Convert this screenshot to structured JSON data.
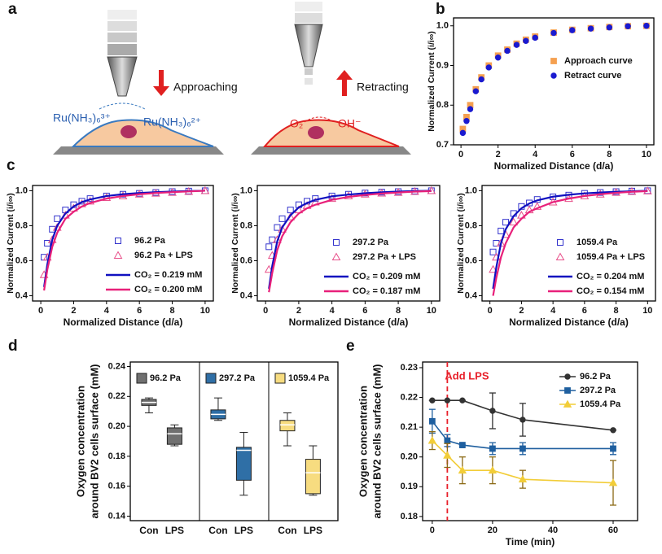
{
  "panel_labels": [
    "a",
    "b",
    "c",
    "d",
    "e"
  ],
  "panel_a": {
    "approach": "Approaching",
    "retract": "Retracting",
    "oxidized": "Ru(NH₃)₆³⁺",
    "reduced": "Ru(NH₃)₆²⁺",
    "oxygen": "O₂",
    "hydroxide": "OH⁻"
  },
  "chart_data": [
    {
      "type": "scatter",
      "xlabel": "Normalized Distance (d/a)",
      "ylabel": "Normalized Current (i/i∞)",
      "xlim": [
        -0.4,
        10.4
      ],
      "ylim": [
        0.7,
        1.02
      ],
      "xticks": [
        0,
        2,
        4,
        6,
        8,
        10
      ],
      "yticks": [
        0.7,
        0.8,
        0.9,
        {
          "value": 1,
          "label": "1.0"
        }
      ],
      "x": [
        0.1,
        0.3,
        0.5,
        0.8,
        1.1,
        1.5,
        2,
        2.5,
        3,
        3.5,
        4,
        5,
        6,
        7,
        8,
        9,
        10
      ],
      "series": [
        {
          "name": "Approach curve",
          "color": "#f5a050",
          "marker": "square",
          "values": [
            0.74,
            0.77,
            0.8,
            0.84,
            0.87,
            0.9,
            0.925,
            0.94,
            0.955,
            0.965,
            0.973,
            0.983,
            0.99,
            0.994,
            0.997,
            0.999,
            1.0
          ]
        },
        {
          "name": "Retract curve",
          "color": "#1a1ad0",
          "marker": "circle",
          "values": [
            0.73,
            0.76,
            0.79,
            0.835,
            0.865,
            0.895,
            0.92,
            0.937,
            0.952,
            0.962,
            0.97,
            0.982,
            0.989,
            0.993,
            0.996,
            0.999,
            1.0
          ]
        }
      ]
    },
    {
      "type": "scatter",
      "xlabel": "Normalized Distance (d/a)",
      "ylabel": "Normalized Current (i/i∞)",
      "xlim": [
        -0.5,
        10.5
      ],
      "ylim": [
        0.37,
        1.03
      ],
      "xticks": [
        0,
        2,
        4,
        6,
        8,
        10
      ],
      "yticks": [
        0.4,
        0.6,
        0.8,
        {
          "value": 1,
          "label": "1.0"
        }
      ],
      "x": [
        0.2,
        0.4,
        0.7,
        1,
        1.5,
        2,
        2.5,
        3,
        4,
        5,
        6,
        7,
        8,
        9,
        10
      ],
      "series": [
        {
          "name": "96.2 Pa",
          "color": "#3333cc",
          "marker": "square",
          "values": [
            0.62,
            0.7,
            0.78,
            0.84,
            0.89,
            0.92,
            0.94,
            0.955,
            0.97,
            0.98,
            0.985,
            0.99,
            0.995,
            0.998,
            1.0
          ]
        },
        {
          "name": "96.2 Pa + LPS",
          "color": "#e8508a",
          "marker": "triangle",
          "values": [
            0.52,
            0.62,
            0.72,
            0.79,
            0.86,
            0.9,
            0.925,
            0.94,
            0.96,
            0.97,
            0.98,
            0.985,
            0.99,
            0.995,
            1.0
          ]
        },
        {
          "name": "CO₂ = 0.219 mM",
          "color": "#1010c0",
          "marker": "line",
          "values": [
            0.45,
            0.58,
            0.72,
            0.8,
            0.87,
            0.91,
            0.935,
            0.95,
            0.97,
            0.98,
            0.987,
            0.992,
            0.995,
            0.998,
            1.0
          ]
        },
        {
          "name": "CO₂ = 0.200 mM",
          "color": "#e8207a",
          "marker": "line",
          "values": [
            0.43,
            0.55,
            0.68,
            0.76,
            0.84,
            0.88,
            0.91,
            0.93,
            0.955,
            0.97,
            0.98,
            0.987,
            0.992,
            0.996,
            1.0
          ]
        }
      ]
    },
    {
      "type": "scatter",
      "xlabel": "Normalized Distance (d/a)",
      "ylabel": "Normalized Current (i/i∞)",
      "xlim": [
        -0.5,
        10.5
      ],
      "ylim": [
        0.37,
        1.03
      ],
      "xticks": [
        0,
        2,
        4,
        6,
        8,
        10
      ],
      "yticks": [
        0.4,
        0.6,
        0.8,
        {
          "value": 1,
          "label": "1.0"
        }
      ],
      "x": [
        0.2,
        0.4,
        0.7,
        1,
        1.5,
        2,
        2.5,
        3,
        4,
        5,
        6,
        7,
        8,
        9,
        10
      ],
      "series": [
        {
          "name": "297.2 Pa",
          "color": "#3333cc",
          "marker": "square",
          "values": [
            0.68,
            0.72,
            0.79,
            0.84,
            0.89,
            0.92,
            0.94,
            0.955,
            0.97,
            0.98,
            0.987,
            0.992,
            0.995,
            0.998,
            1.0
          ]
        },
        {
          "name": "297.2 Pa + LPS",
          "color": "#e8508a",
          "marker": "triangle",
          "values": [
            0.55,
            0.63,
            0.72,
            0.78,
            0.85,
            0.89,
            0.915,
            0.935,
            0.955,
            0.97,
            0.98,
            0.986,
            0.99,
            0.995,
            1.0
          ]
        },
        {
          "name": "CO₂ = 0.209 mM",
          "color": "#1010c0",
          "marker": "line",
          "values": [
            0.44,
            0.57,
            0.71,
            0.79,
            0.86,
            0.905,
            0.93,
            0.948,
            0.968,
            0.978,
            0.986,
            0.991,
            0.995,
            0.998,
            1.0
          ]
        },
        {
          "name": "CO₂ = 0.187 mM",
          "color": "#e8207a",
          "marker": "line",
          "values": [
            0.42,
            0.53,
            0.66,
            0.74,
            0.82,
            0.87,
            0.9,
            0.92,
            0.948,
            0.965,
            0.976,
            0.984,
            0.99,
            0.995,
            0.998
          ]
        }
      ]
    },
    {
      "type": "scatter",
      "xlabel": "Normalized Distance (d/a)",
      "ylabel": "Normalized Current (i/i∞)",
      "xlim": [
        -0.5,
        10.5
      ],
      "ylim": [
        0.37,
        1.03
      ],
      "xticks": [
        0,
        2,
        4,
        6,
        8,
        10
      ],
      "yticks": [
        0.4,
        0.6,
        0.8,
        {
          "value": 1,
          "label": "1.0"
        }
      ],
      "x": [
        0.2,
        0.4,
        0.7,
        1,
        1.5,
        2,
        2.5,
        3,
        4,
        5,
        6,
        7,
        8,
        9,
        10
      ],
      "series": [
        {
          "name": "1059.4 Pa",
          "color": "#3333cc",
          "marker": "square",
          "values": [
            0.65,
            0.7,
            0.77,
            0.82,
            0.87,
            0.91,
            0.93,
            0.95,
            0.965,
            0.975,
            0.985,
            0.99,
            0.995,
            0.998,
            1.0
          ]
        },
        {
          "name": "1059.4 Pa + LPS",
          "color": "#e8508a",
          "marker": "triangle",
          "values": [
            0.55,
            0.62,
            0.7,
            0.75,
            0.82,
            0.86,
            0.89,
            0.91,
            0.935,
            0.955,
            0.97,
            0.98,
            0.99,
            0.995,
            0.998
          ]
        },
        {
          "name": "CO₂ = 0.204 mM",
          "color": "#1010c0",
          "marker": "line",
          "values": [
            0.44,
            0.56,
            0.7,
            0.78,
            0.855,
            0.9,
            0.927,
            0.945,
            0.966,
            0.977,
            0.985,
            0.99,
            0.994,
            0.997,
            1.0
          ]
        },
        {
          "name": "CO₂ = 0.154 mM",
          "color": "#e8207a",
          "marker": "line",
          "values": [
            0.4,
            0.5,
            0.62,
            0.7,
            0.79,
            0.84,
            0.88,
            0.9,
            0.935,
            0.955,
            0.97,
            0.98,
            0.988,
            0.994,
            0.998
          ]
        }
      ]
    },
    {
      "type": "box",
      "ylabel": [
        "Oxygen concentration",
        "around BV2 cells surface (mM)"
      ],
      "ylim": [
        0.137,
        0.243
      ],
      "yticks": [
        0.14,
        0.16,
        0.18,
        {
          "value": 0.2,
          "label": "0.20"
        },
        0.22,
        0.24
      ],
      "groups": [
        {
          "name": "96.2 Pa",
          "color": "#707070",
          "boxes": [
            {
              "label": "Con",
              "min": 0.209,
              "q1": 0.214,
              "median": 0.216,
              "q3": 0.218,
              "max": 0.219
            },
            {
              "label": "LPS",
              "min": 0.187,
              "q1": 0.188,
              "median": 0.195,
              "q3": 0.199,
              "max": 0.201
            }
          ]
        },
        {
          "name": "297.2 Pa",
          "color": "#2f6fa6",
          "boxes": [
            {
              "label": "Con",
              "min": 0.204,
              "q1": 0.205,
              "median": 0.208,
              "q3": 0.211,
              "max": 0.219
            },
            {
              "label": "LPS",
              "min": 0.154,
              "q1": 0.164,
              "median": 0.184,
              "q3": 0.186,
              "max": 0.196
            }
          ]
        },
        {
          "name": "1059.4 Pa",
          "color": "#f7dc80",
          "boxes": [
            {
              "label": "Con",
              "min": 0.187,
              "q1": 0.197,
              "median": 0.201,
              "q3": 0.204,
              "max": 0.209
            },
            {
              "label": "LPS",
              "min": 0.154,
              "q1": 0.155,
              "median": 0.169,
              "q3": 0.178,
              "max": 0.187
            }
          ]
        }
      ]
    },
    {
      "type": "line",
      "xlabel": "Time (min)",
      "ylabel": [
        "Oxygen concentration",
        "around BV2 cells surface (mM)"
      ],
      "xlim": [
        -3.2,
        68.1
      ],
      "ylim": [
        0.1786,
        0.2319
      ],
      "xticks": [
        0,
        20,
        40,
        60
      ],
      "yticks": [
        0.18,
        0.19,
        {
          "value": 0.2,
          "label": "0.20"
        },
        0.21,
        0.22,
        0.23
      ],
      "annotation": {
        "text": "Add LPS",
        "x": 5,
        "color": "#e8202a"
      },
      "x": [
        0,
        5,
        10,
        20,
        30,
        60
      ],
      "series": [
        {
          "name": "96.2 Pa",
          "color": "#333333",
          "marker": "circle",
          "values": [
            0.219,
            0.219,
            0.219,
            0.2155,
            0.2125,
            0.209
          ],
          "error": [
            0,
            0,
            0,
            0.006,
            0.0055,
            0
          ]
        },
        {
          "name": "297.2 Pa",
          "color": "#1f5f9f",
          "marker": "square",
          "values": [
            0.212,
            0.2055,
            0.204,
            0.2028,
            0.2028,
            0.2028
          ],
          "error": [
            0.004,
            0.002,
            0,
            0.002,
            0.002,
            0.002
          ]
        },
        {
          "name": "1059.4 Pa",
          "color": "#f2cd38",
          "marker": "triangle",
          "values": [
            0.2055,
            0.2005,
            0.1955,
            0.1955,
            0.1925,
            0.1913
          ],
          "error": [
            0.003,
            0.004,
            0.0045,
            0.0045,
            0.003,
            0.0075
          ]
        }
      ]
    }
  ]
}
